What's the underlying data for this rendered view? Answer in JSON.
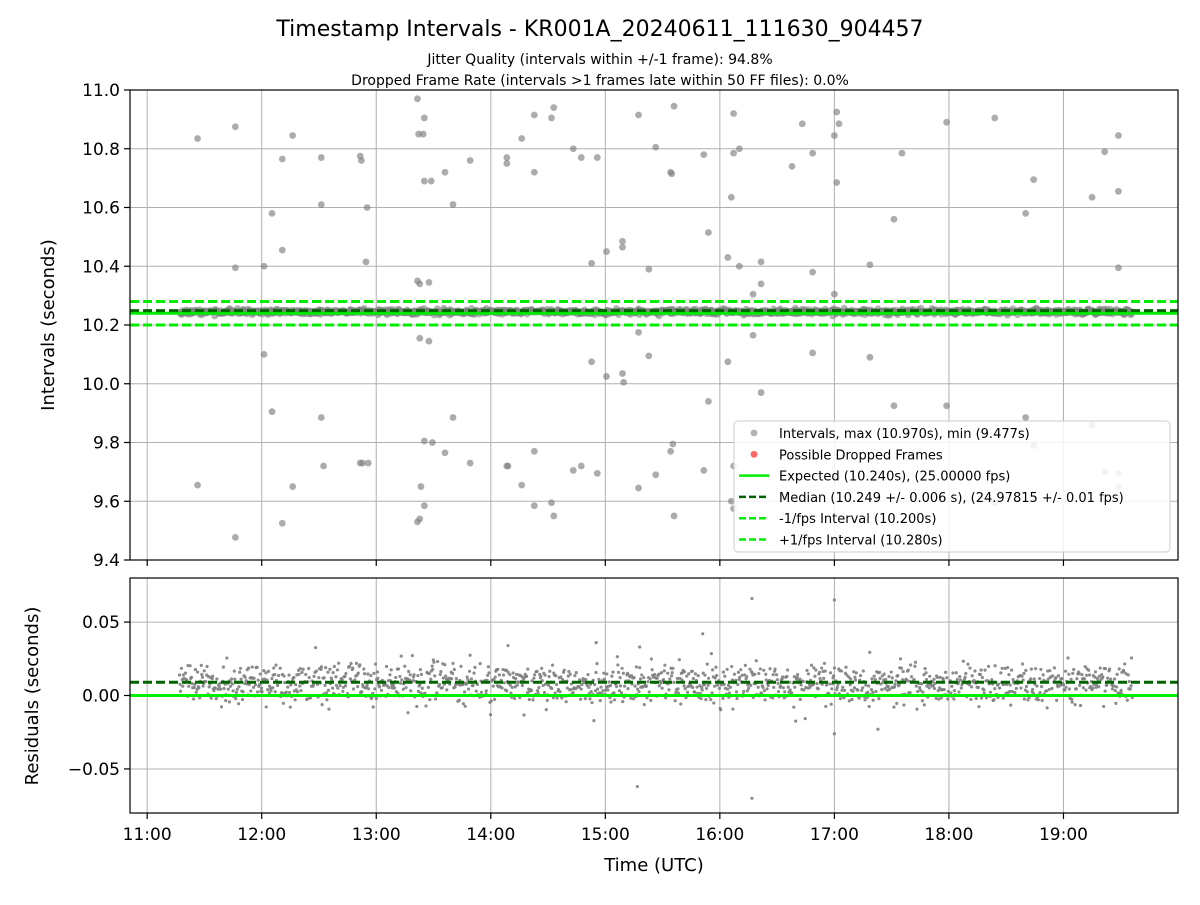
{
  "chart_data": [
    {
      "type": "scatter",
      "title": "Timestamp Intervals - KR001A_20240611_111630_904457",
      "subtitle_lines": [
        "Jitter Quality (intervals within +/-1 frame): 94.8%",
        "Dropped Frame Rate (intervals >1 frames late within 50 FF files): 0.0%"
      ],
      "xlabel": "",
      "ylabel": "Intervals (seconds)",
      "xlim_hours": [
        10.85,
        20.0
      ],
      "ylim": [
        9.4,
        11.0
      ],
      "yticks": [
        9.4,
        9.6,
        9.8,
        10.0,
        10.2,
        10.4,
        10.6,
        10.8,
        11.0
      ],
      "ytick_labels": [
        "9.4",
        "9.6",
        "9.8",
        "10.0",
        "10.2",
        "10.4",
        "10.6",
        "10.8",
        "11.0"
      ],
      "xticks_hours": [
        11,
        12,
        13,
        14,
        15,
        16,
        17,
        18,
        19
      ],
      "grid": true,
      "legend_position": "lower-right",
      "legend": [
        {
          "label": "Intervals, max (10.970s), min (9.477s)",
          "kind": "marker",
          "color": "#808080"
        },
        {
          "label": "Possible Dropped Frames",
          "kind": "marker",
          "color": "#ff0000"
        },
        {
          "label": "Expected (10.240s), (25.00000 fps)",
          "kind": "line",
          "color": "#00ee00",
          "dash": "solid"
        },
        {
          "label": "Median (10.249 +/- 0.006 s), (24.97815 +/- 0.01 fps)",
          "kind": "line",
          "color": "#006400",
          "dash": "dashed"
        },
        {
          "label": "-1/fps Interval (10.200s)",
          "kind": "line",
          "color": "#00ee00",
          "dash": "dashed"
        },
        {
          "label": "+1/fps Interval (10.280s)",
          "kind": "line",
          "color": "#00ee00",
          "dash": "dashed"
        }
      ],
      "reference_lines": [
        {
          "name": "expected",
          "y": 10.24,
          "color": "#00ee00",
          "dash": "solid"
        },
        {
          "name": "median",
          "y": 10.249,
          "color": "#006400",
          "dash": "dashed"
        },
        {
          "name": "minus_one_frame",
          "y": 10.2,
          "color": "#00ee00",
          "dash": "dashed"
        },
        {
          "name": "plus_one_frame",
          "y": 10.28,
          "color": "#00ee00",
          "dash": "dashed"
        }
      ],
      "dense_band": {
        "y_center": 10.245,
        "y_spread": 0.02,
        "x_start_hours": 11.28,
        "x_end_hours": 19.6
      },
      "outliers": [
        [
          11.44,
          10.835
        ],
        [
          11.44,
          9.655
        ],
        [
          11.77,
          10.875
        ],
        [
          11.77,
          10.395
        ],
        [
          11.77,
          9.477
        ],
        [
          12.02,
          10.4
        ],
        [
          12.02,
          10.1
        ],
        [
          12.09,
          10.58
        ],
        [
          12.09,
          9.905
        ],
        [
          12.18,
          10.765
        ],
        [
          12.18,
          10.455
        ],
        [
          12.18,
          9.525
        ],
        [
          12.27,
          10.845
        ],
        [
          12.27,
          9.65
        ],
        [
          12.52,
          10.61
        ],
        [
          12.52,
          10.77
        ],
        [
          12.52,
          9.885
        ],
        [
          12.54,
          9.72
        ],
        [
          12.86,
          10.775
        ],
        [
          12.87,
          10.76
        ],
        [
          12.86,
          9.73
        ],
        [
          12.88,
          9.73
        ],
        [
          12.91,
          10.415
        ],
        [
          12.92,
          10.6
        ],
        [
          12.93,
          9.73
        ],
        [
          13.36,
          10.97
        ],
        [
          13.36,
          10.35
        ],
        [
          13.37,
          10.85
        ],
        [
          13.38,
          10.34
        ],
        [
          13.38,
          10.155
        ],
        [
          13.36,
          9.53
        ],
        [
          13.38,
          9.54
        ],
        [
          13.39,
          9.65
        ],
        [
          13.41,
          10.85
        ],
        [
          13.42,
          10.905
        ],
        [
          13.42,
          10.69
        ],
        [
          13.42,
          9.805
        ],
        [
          13.42,
          9.585
        ],
        [
          13.46,
          10.345
        ],
        [
          13.46,
          10.145
        ],
        [
          13.48,
          10.69
        ],
        [
          13.49,
          9.8
        ],
        [
          13.6,
          10.72
        ],
        [
          13.6,
          9.765
        ],
        [
          13.67,
          10.61
        ],
        [
          13.67,
          9.885
        ],
        [
          13.82,
          10.76
        ],
        [
          13.82,
          9.73
        ],
        [
          14.14,
          10.77
        ],
        [
          14.14,
          10.75
        ],
        [
          14.14,
          9.72
        ],
        [
          14.15,
          9.72
        ],
        [
          14.27,
          10.835
        ],
        [
          14.27,
          9.655
        ],
        [
          14.38,
          10.915
        ],
        [
          14.38,
          10.72
        ],
        [
          14.38,
          9.77
        ],
        [
          14.38,
          9.585
        ],
        [
          14.53,
          10.905
        ],
        [
          14.55,
          10.94
        ],
        [
          14.53,
          9.595
        ],
        [
          14.55,
          9.55
        ],
        [
          14.72,
          10.8
        ],
        [
          14.72,
          9.705
        ],
        [
          14.79,
          10.77
        ],
        [
          14.79,
          9.72
        ],
        [
          14.88,
          10.41
        ],
        [
          14.88,
          10.075
        ],
        [
          14.93,
          10.77
        ],
        [
          14.93,
          9.695
        ],
        [
          15.01,
          10.45
        ],
        [
          15.01,
          10.025
        ],
        [
          15.15,
          10.465
        ],
        [
          15.15,
          10.485
        ],
        [
          15.15,
          10.035
        ],
        [
          15.16,
          10.005
        ],
        [
          15.29,
          10.915
        ],
        [
          15.29,
          10.175
        ],
        [
          15.29,
          9.645
        ],
        [
          15.38,
          10.39
        ],
        [
          15.38,
          10.095
        ],
        [
          15.44,
          10.805
        ],
        [
          15.44,
          9.69
        ],
        [
          15.57,
          10.72
        ],
        [
          15.58,
          10.715
        ],
        [
          15.57,
          9.77
        ],
        [
          15.59,
          9.795
        ],
        [
          15.6,
          10.945
        ],
        [
          15.6,
          9.55
        ],
        [
          15.86,
          10.78
        ],
        [
          15.86,
          9.705
        ],
        [
          15.9,
          10.515
        ],
        [
          15.9,
          9.94
        ],
        [
          16.07,
          10.43
        ],
        [
          16.07,
          10.075
        ],
        [
          16.1,
          10.635
        ],
        [
          16.1,
          9.6
        ],
        [
          16.12,
          10.92
        ],
        [
          16.12,
          10.785
        ],
        [
          16.12,
          9.575
        ],
        [
          16.12,
          9.72
        ],
        [
          16.17,
          10.8
        ],
        [
          16.17,
          10.4
        ],
        [
          16.29,
          10.165
        ],
        [
          16.29,
          10.305
        ],
        [
          16.36,
          10.415
        ],
        [
          16.36,
          10.34
        ],
        [
          16.36,
          9.97
        ],
        [
          16.63,
          10.74
        ],
        [
          16.72,
          10.885
        ],
        [
          16.81,
          10.785
        ],
        [
          16.81,
          10.38
        ],
        [
          16.81,
          10.105
        ],
        [
          17.0,
          10.845
        ],
        [
          17.0,
          10.305
        ],
        [
          17.02,
          10.925
        ],
        [
          17.02,
          10.685
        ],
        [
          17.04,
          10.885
        ],
        [
          17.31,
          10.405
        ],
        [
          17.31,
          10.09
        ],
        [
          17.52,
          10.56
        ],
        [
          17.52,
          9.925
        ],
        [
          17.59,
          10.785
        ],
        [
          17.98,
          10.89
        ],
        [
          17.98,
          9.925
        ],
        [
          18.4,
          10.905
        ],
        [
          18.4,
          9.595
        ],
        [
          18.67,
          10.58
        ],
        [
          18.67,
          9.885
        ],
        [
          18.74,
          10.695
        ],
        [
          18.74,
          9.79
        ],
        [
          19.25,
          10.635
        ],
        [
          19.25,
          9.86
        ],
        [
          19.36,
          10.79
        ],
        [
          19.36,
          9.7
        ],
        [
          19.48,
          10.845
        ],
        [
          19.48,
          10.655
        ],
        [
          19.48,
          10.395
        ],
        [
          19.48,
          9.695
        ],
        [
          19.48,
          9.65
        ]
      ]
    },
    {
      "type": "scatter",
      "title": "",
      "xlabel": "Time (UTC)",
      "ylabel": "Residuals (seconds)",
      "xlim_hours": [
        10.85,
        20.0
      ],
      "ylim": [
        -0.08,
        0.08
      ],
      "yticks": [
        -0.05,
        0.0,
        0.05
      ],
      "ytick_labels": [
        "−0.05",
        "0.00",
        "0.05"
      ],
      "xticks_hours": [
        11,
        12,
        13,
        14,
        15,
        16,
        17,
        18,
        19
      ],
      "xtick_labels": [
        "11:00",
        "12:00",
        "13:00",
        "14:00",
        "15:00",
        "16:00",
        "17:00",
        "18:00",
        "19:00"
      ],
      "grid": true,
      "reference_lines": [
        {
          "name": "zero",
          "y": 0.0,
          "color": "#00ee00",
          "dash": "solid"
        },
        {
          "name": "median_residual",
          "y": 0.009,
          "color": "#006400",
          "dash": "dashed"
        }
      ],
      "dense_band": {
        "y_center": 0.008,
        "y_spread": 0.028,
        "x_start_hours": 11.28,
        "x_end_hours": 19.6
      },
      "outliers": [
        [
          16.28,
          0.066
        ],
        [
          17.0,
          0.065
        ],
        [
          15.28,
          -0.062
        ],
        [
          16.28,
          -0.07
        ],
        [
          15.85,
          0.042
        ],
        [
          14.92,
          0.036
        ],
        [
          15.3,
          0.033
        ],
        [
          14.15,
          0.034
        ],
        [
          17.0,
          -0.026
        ],
        [
          17.38,
          -0.023
        ]
      ]
    }
  ]
}
